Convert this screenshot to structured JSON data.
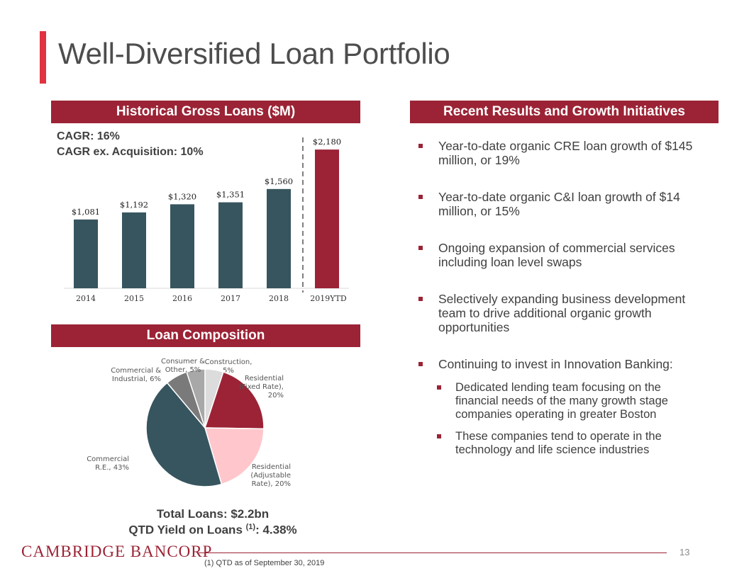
{
  "title": "Well-Diversified Loan Portfolio",
  "colors": {
    "accent_bar": "#e03241",
    "header_bg": "#9b2335",
    "bar": "#37555f",
    "bar_highlight": "#9b2335"
  },
  "left": {
    "loans_header": "Historical Gross Loans ($M)",
    "cagr": "CAGR: 16%",
    "cagr_ex": "CAGR ex. Acquisition: 10%",
    "composition_header": "Loan Composition",
    "total_loans": "Total Loans: $2.2bn",
    "qtd_yield_prefix": "QTD Yield on Loans ",
    "qtd_yield_sup": "(1)",
    "qtd_yield_suffix": ": 4.38%"
  },
  "right": {
    "header": "Recent Results and Growth Initiatives",
    "bullets": [
      {
        "lines": [
          "Year-to-date organic CRE loan growth of $145",
          "million, or 19%"
        ]
      },
      {
        "lines": [
          "Year-to-date organic C&I loan growth of $14",
          "million, or 15%"
        ]
      },
      {
        "lines": [
          "Ongoing expansion of commercial services",
          "including loan level swaps"
        ]
      },
      {
        "lines": [
          "Selectively expanding business development",
          "team to drive additional organic growth",
          "opportunities"
        ]
      },
      {
        "lines": [
          "Continuing to invest in Innovation Banking:"
        ]
      }
    ],
    "sub_bullets": [
      {
        "lines": [
          "Dedicated lending team focusing on the",
          "financial needs of the many growth stage",
          "companies operating in greater Boston"
        ]
      },
      {
        "lines": [
          "These companies tend to operate in the",
          "technology and life science industries"
        ]
      }
    ]
  },
  "chart_data": [
    {
      "type": "bar",
      "title": "Historical Gross Loans ($M)",
      "categories": [
        "2014",
        "2015",
        "2016",
        "2017",
        "2018",
        "2019YTD"
      ],
      "values": [
        1081,
        1192,
        1320,
        1351,
        1560,
        2180
      ],
      "labels": [
        "$1,081",
        "$1,192",
        "$1,320",
        "$1,351",
        "$1,560",
        "$2,180"
      ],
      "highlight_index": 5,
      "ylim": [
        0,
        2400
      ]
    },
    {
      "type": "pie",
      "title": "Loan Composition",
      "slices": [
        {
          "name": "Construction",
          "value": 5,
          "label_lines": [
            "Construction,",
            "5%"
          ],
          "color": "#dcdcdc"
        },
        {
          "name": "Residential (Fixed Rate)",
          "value": 20,
          "label_lines": [
            "Residential",
            "(Fixed Rate),",
            "20%"
          ],
          "color": "#9b2335"
        },
        {
          "name": "Residential (Adjustable Rate)",
          "value": 20,
          "label_lines": [
            "Residential",
            "(Adjustable",
            "Rate), 20%"
          ],
          "color": "#ffc7cc"
        },
        {
          "name": "Commercial R.E.",
          "value": 43,
          "label_lines": [
            "Commercial",
            "R.E., 43%"
          ],
          "color": "#37555f"
        },
        {
          "name": "Commercial & Industrial",
          "value": 6,
          "label_lines": [
            "Commercial &",
            "Industrial, 6%"
          ],
          "color": "#7a7a7a"
        },
        {
          "name": "Consumer & Other",
          "value": 5,
          "label_lines": [
            "Consumer &",
            "Other, 5%"
          ],
          "color": "#a8a8a8"
        }
      ]
    }
  ],
  "footer": {
    "logo": "CAMBRIDGE BANCORP",
    "page_number": "13",
    "footnote": "(1)    QTD as of September 30, 2019"
  }
}
